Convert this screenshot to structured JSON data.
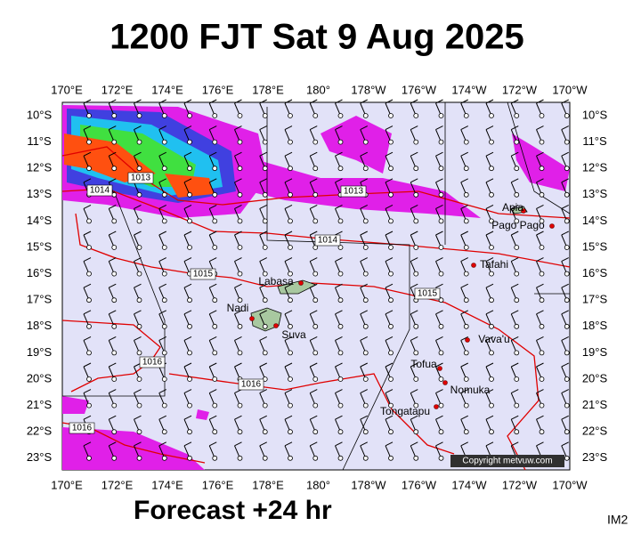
{
  "header": {
    "title": "1200 FJT Sat 9 Aug 2025"
  },
  "map": {
    "lon_labels": [
      "170°E",
      "172°E",
      "174°E",
      "176°E",
      "178°E",
      "180°",
      "178°W",
      "176°W",
      "174°W",
      "172°W",
      "170°W"
    ],
    "lat_labels": [
      "10°S",
      "11°S",
      "12°S",
      "13°S",
      "14°S",
      "15°S",
      "16°S",
      "17°S",
      "18°S",
      "19°S",
      "20°S",
      "21°S",
      "22°S",
      "23°S"
    ],
    "places": [
      "Apia",
      "Pago Pago",
      "Tafahi",
      "Labasa",
      "Nadi",
      "Suva",
      "Vava'u",
      "Tofua",
      "Nomuka",
      "Tongatapu"
    ],
    "isobar_labels": [
      "1013",
      "1014",
      "1013",
      "1014",
      "1015",
      "1015",
      "1016",
      "1016",
      "1016"
    ],
    "copyright": "Copyright metvuw.com"
  },
  "footer": {
    "forecast": "Forecast +24 hr",
    "code": "IM2"
  }
}
